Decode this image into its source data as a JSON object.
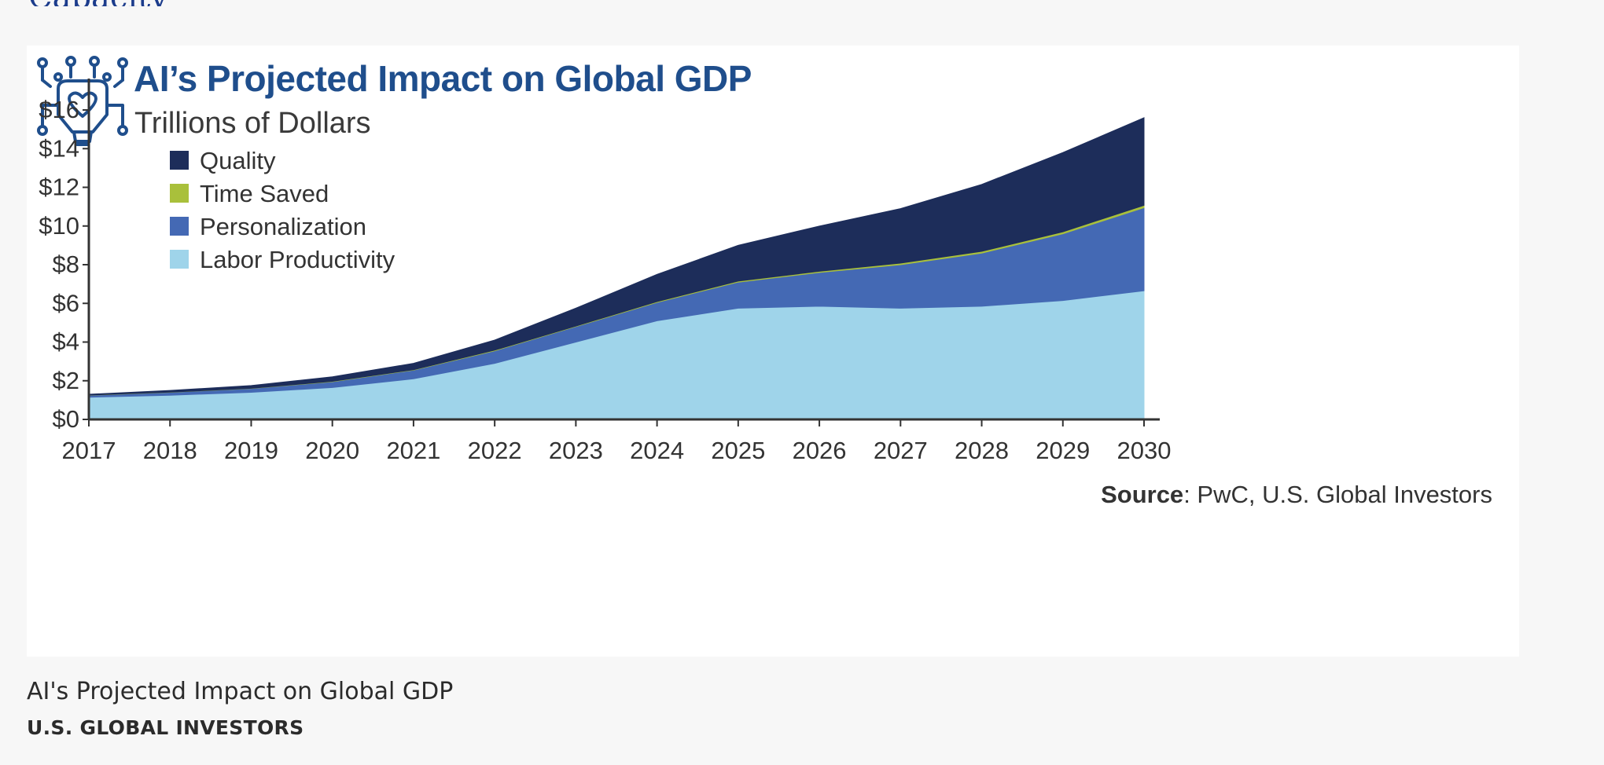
{
  "page": {
    "top_fragment": "Capacity",
    "caption": "AI's Projected Impact on Global GDP",
    "credit": "U.S. GLOBAL INVESTORS"
  },
  "chart_data": {
    "type": "area",
    "stacked": true,
    "title": "AI’s Projected Impact on Global GDP",
    "subtitle": "Trillions of Dollars",
    "xlabel": "",
    "ylabel": "",
    "categories": [
      "2017",
      "2018",
      "2019",
      "2020",
      "2021",
      "2022",
      "2023",
      "2024",
      "2025",
      "2026",
      "2027",
      "2028",
      "2029",
      "2030"
    ],
    "ylim": [
      0,
      16
    ],
    "yticks": [
      0,
      2,
      4,
      6,
      8,
      10,
      12,
      14,
      16
    ],
    "ytick_labels": [
      "$0",
      "$2",
      "$4",
      "$6",
      "$8",
      "$10",
      "$12",
      "$14",
      "$16"
    ],
    "grid": false,
    "legend_position": "top-left",
    "source_label": "Source",
    "source_text": ": PwC, U.S. Global Investors",
    "series": [
      {
        "name": "Labor Productivity",
        "color": "#9fd4ea",
        "values": [
          1.15,
          1.25,
          1.4,
          1.65,
          2.1,
          2.9,
          4.0,
          5.1,
          5.75,
          5.85,
          5.75,
          5.85,
          6.15,
          6.65
        ]
      },
      {
        "name": "Personalization",
        "color": "#4469b4",
        "values": [
          0.1,
          0.15,
          0.2,
          0.3,
          0.45,
          0.65,
          0.8,
          0.95,
          1.35,
          1.75,
          2.25,
          2.75,
          3.45,
          4.3
        ]
      },
      {
        "name": "Time Saved",
        "color": "#a9c03b",
        "values": [
          0.01,
          0.01,
          0.01,
          0.02,
          0.02,
          0.03,
          0.03,
          0.04,
          0.05,
          0.06,
          0.08,
          0.09,
          0.1,
          0.12
        ]
      },
      {
        "name": "Quality",
        "color": "#1d2d5a",
        "values": [
          0.04,
          0.09,
          0.14,
          0.23,
          0.33,
          0.52,
          0.92,
          1.41,
          1.85,
          2.34,
          2.82,
          3.46,
          4.1,
          4.53
        ]
      }
    ],
    "legend_order": [
      "Quality",
      "Time Saved",
      "Personalization",
      "Labor Productivity"
    ],
    "axis_color": "#333333",
    "title_color": "#1f4e8c",
    "icon": "ai-chip-brain-icon"
  }
}
